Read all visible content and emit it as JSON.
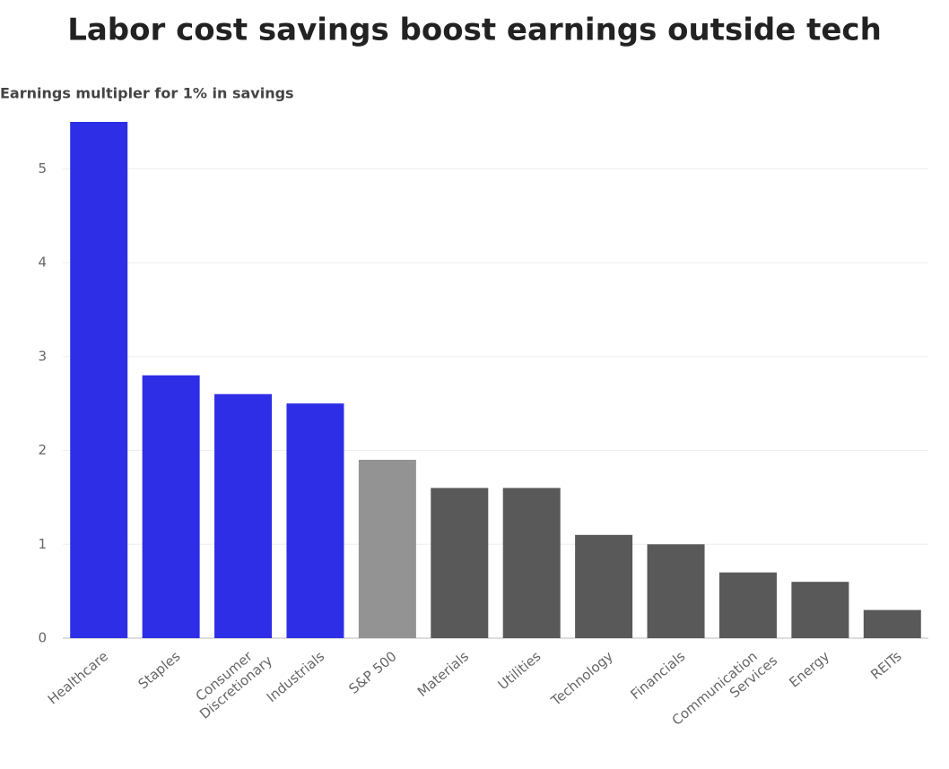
{
  "chart_data": {
    "type": "bar",
    "title": "Labor cost savings boost earnings outside tech",
    "subtitle": "Earnings multipler for 1% in savings",
    "categories": [
      "Healthcare",
      "Staples",
      "Consumer\nDiscretionary",
      "Industrials",
      "S&P 500",
      "Materials",
      "Utilities",
      "Technology",
      "Financials",
      "Communication\nServices",
      "Energy",
      "REITs"
    ],
    "values": [
      5.5,
      2.8,
      2.6,
      2.5,
      1.9,
      1.6,
      1.6,
      1.1,
      1.0,
      0.7,
      0.6,
      0.3
    ],
    "colors": [
      "#2e2ee6",
      "#2e2ee6",
      "#2e2ee6",
      "#2e2ee6",
      "#939393",
      "#595959",
      "#595959",
      "#595959",
      "#595959",
      "#595959",
      "#595959",
      "#595959"
    ],
    "ylim": [
      0,
      5.5
    ],
    "yticks": [
      0,
      1,
      2,
      3,
      4,
      5
    ],
    "grid": true
  }
}
